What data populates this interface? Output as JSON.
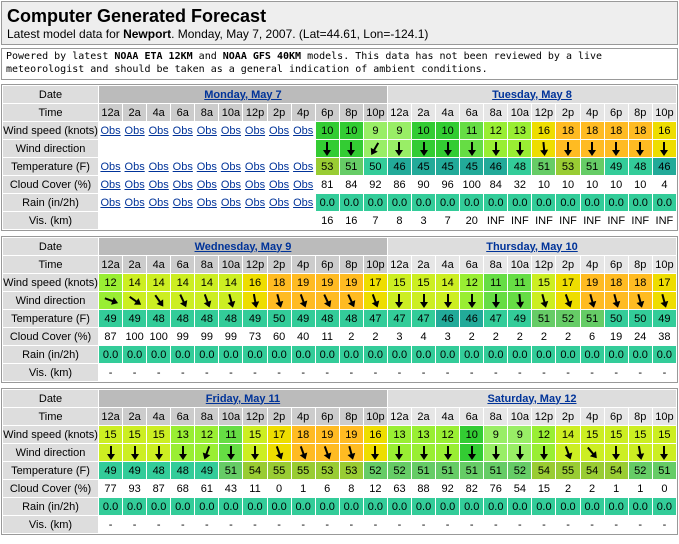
{
  "header": {
    "title": "Computer Generated Forecast",
    "subtitle": [
      {
        "text": "Latest model data for ",
        "bold": false
      },
      {
        "text": "Newport",
        "bold": true
      },
      {
        "text": ". Monday, May 7, 2007. (Lat=44.61, Lon=-124.1)",
        "bold": false
      }
    ]
  },
  "disclaimer": [
    {
      "text": "Powered by latest ",
      "bold": false
    },
    {
      "text": "NOAA ETA 12KM",
      "bold": true
    },
    {
      "text": " and ",
      "bold": false
    },
    {
      "text": "NOAA GFS 40KM",
      "bold": true
    },
    {
      "text": " models. This data has not been reviewed by a live meteorologist and should be taken as a general indication of ambient conditions.",
      "bold": false
    }
  ],
  "row_labels": [
    "Date",
    "Time",
    "Wind speed (knots)",
    "Wind direction",
    "Temperature (F)",
    "Cloud Cover (%)",
    "Rain (in/2h)",
    "Vis. (km)"
  ],
  "blocks": [
    {
      "days": [
        {
          "date": "Monday, May 7",
          "times": [
            "12a",
            "2a",
            "4a",
            "6a",
            "8a",
            "10a",
            "12p",
            "2p",
            "4p",
            "6p",
            "8p",
            "10p"
          ],
          "wind_speed": [
            "Obs",
            "Obs",
            "Obs",
            "Obs",
            "Obs",
            "Obs",
            "Obs",
            "Obs",
            "Obs",
            10,
            10,
            9
          ],
          "wind_direction": [
            null,
            null,
            null,
            null,
            null,
            null,
            null,
            null,
            null,
            0,
            0,
            30
          ],
          "temperature": [
            "Obs",
            "Obs",
            "Obs",
            "Obs",
            "Obs",
            "Obs",
            "Obs",
            "Obs",
            "Obs",
            53,
            51,
            50
          ],
          "cloud_cover": [
            "Obs",
            "Obs",
            "Obs",
            "Obs",
            "Obs",
            "Obs",
            "Obs",
            "Obs",
            "Obs",
            81,
            84,
            92
          ],
          "rain": [
            "Obs",
            "Obs",
            "Obs",
            "Obs",
            "Obs",
            "Obs",
            "Obs",
            "Obs",
            "Obs",
            "0.0",
            "0.0",
            "0.0"
          ],
          "visibility": [
            null,
            null,
            null,
            null,
            null,
            null,
            null,
            null,
            null,
            16,
            16,
            7
          ]
        },
        {
          "date": "Tuesday, May 8",
          "times": [
            "12a",
            "2a",
            "4a",
            "6a",
            "8a",
            "10a",
            "12p",
            "2p",
            "4p",
            "6p",
            "8p",
            "10p"
          ],
          "wind_speed": [
            9,
            10,
            10,
            11,
            12,
            13,
            16,
            18,
            18,
            18,
            18,
            16
          ],
          "wind_direction": [
            0,
            0,
            0,
            0,
            0,
            0,
            355,
            0,
            0,
            0,
            0,
            0
          ],
          "temperature": [
            46,
            45,
            45,
            45,
            46,
            48,
            51,
            53,
            51,
            49,
            48,
            46
          ],
          "cloud_cover": [
            86,
            90,
            96,
            100,
            84,
            32,
            10,
            10,
            10,
            10,
            10,
            4
          ],
          "rain": [
            "0.0",
            "0.0",
            "0.0",
            "0.0",
            "0.0",
            "0.0",
            "0.0",
            "0.0",
            "0.0",
            "0.0",
            "0.0",
            "0.0"
          ],
          "visibility": [
            8,
            3,
            7,
            20,
            "INF",
            "INF",
            "INF",
            "INF",
            "INF",
            "INF",
            "INF",
            "INF"
          ]
        }
      ]
    },
    {
      "days": [
        {
          "date": "Wednesday, May 9",
          "times": [
            "12a",
            "2a",
            "4a",
            "6a",
            "8a",
            "10a",
            "12p",
            "2p",
            "4p",
            "6p",
            "8p",
            "10p"
          ],
          "wind_speed": [
            12,
            14,
            14,
            14,
            14,
            14,
            16,
            18,
            19,
            19,
            19,
            17
          ],
          "wind_direction": [
            290,
            305,
            325,
            335,
            340,
            345,
            350,
            345,
            340,
            335,
            335,
            340
          ],
          "temperature": [
            49,
            49,
            48,
            48,
            48,
            48,
            49,
            50,
            49,
            48,
            48,
            47
          ],
          "cloud_cover": [
            87,
            100,
            100,
            99,
            99,
            99,
            73,
            60,
            40,
            11,
            2,
            2
          ],
          "rain": [
            "0.0",
            "0.0",
            "0.0",
            "0.0",
            "0.0",
            "0.0",
            "0.0",
            "0.0",
            "0.0",
            "0.0",
            "0.0",
            "0.0"
          ],
          "visibility": [
            "-",
            "-",
            "-",
            "-",
            "-",
            "-",
            "-",
            "-",
            "-",
            "-",
            "-",
            "-"
          ]
        },
        {
          "date": "Thursday, May 10",
          "times": [
            "12a",
            "2a",
            "4a",
            "6a",
            "8a",
            "10a",
            "12p",
            "2p",
            "4p",
            "6p",
            "8p",
            "10p"
          ],
          "wind_speed": [
            15,
            15,
            14,
            12,
            11,
            11,
            15,
            17,
            19,
            18,
            18,
            17
          ],
          "wind_direction": [
            0,
            0,
            0,
            0,
            0,
            355,
            345,
            340,
            345,
            345,
            345,
            345
          ],
          "temperature": [
            47,
            47,
            46,
            46,
            47,
            49,
            51,
            52,
            51,
            50,
            50,
            49
          ],
          "cloud_cover": [
            3,
            4,
            3,
            2,
            2,
            2,
            2,
            2,
            6,
            19,
            24,
            38
          ],
          "rain": [
            "0.0",
            "0.0",
            "0.0",
            "0.0",
            "0.0",
            "0.0",
            "0.0",
            "0.0",
            "0.0",
            "0.0",
            "0.0",
            "0.0"
          ],
          "visibility": [
            "-",
            "-",
            "-",
            "-",
            "-",
            "-",
            "-",
            "-",
            "-",
            "-",
            "-",
            "-"
          ]
        }
      ]
    },
    {
      "days": [
        {
          "date": "Friday, May 11",
          "times": [
            "12a",
            "2a",
            "4a",
            "6a",
            "8a",
            "10a",
            "12p",
            "2p",
            "4p",
            "6p",
            "8p",
            "10p"
          ],
          "wind_speed": [
            15,
            15,
            15,
            13,
            12,
            11,
            15,
            17,
            18,
            19,
            19,
            16
          ],
          "wind_direction": [
            0,
            0,
            0,
            0,
            20,
            0,
            0,
            340,
            340,
            340,
            345,
            0
          ],
          "temperature": [
            49,
            49,
            48,
            48,
            49,
            51,
            54,
            55,
            55,
            53,
            53,
            52
          ],
          "cloud_cover": [
            77,
            93,
            87,
            68,
            61,
            43,
            11,
            0,
            1,
            6,
            8,
            12
          ],
          "rain": [
            "0.0",
            "0.0",
            "0.0",
            "0.0",
            "0.0",
            "0.0",
            "0.0",
            "0.0",
            "0.0",
            "0.0",
            "0.0",
            "0.0"
          ],
          "visibility": [
            "-",
            "-",
            "-",
            "-",
            "-",
            "-",
            "-",
            "-",
            "-",
            "-",
            "-",
            "-"
          ]
        },
        {
          "date": "Saturday, May 12",
          "times": [
            "12a",
            "2a",
            "4a",
            "6a",
            "8a",
            "10a",
            "12p",
            "2p",
            "4p",
            "6p",
            "8p",
            "10p"
          ],
          "wind_speed": [
            13,
            13,
            12,
            10,
            9,
            9,
            12,
            14,
            15,
            15,
            15,
            15
          ],
          "wind_direction": [
            0,
            0,
            0,
            0,
            0,
            0,
            0,
            340,
            320,
            0,
            350,
            0
          ],
          "temperature": [
            52,
            51,
            51,
            51,
            51,
            52,
            54,
            55,
            54,
            54,
            52,
            51
          ],
          "cloud_cover": [
            63,
            88,
            92,
            82,
            76,
            54,
            15,
            2,
            2,
            1,
            1,
            0
          ],
          "rain": [
            "0.0",
            "0.0",
            "0.0",
            "0.0",
            "0.0",
            "0.0",
            "0.0",
            "0.0",
            "0.0",
            "0.0",
            "0.0",
            "0.0"
          ],
          "visibility": [
            "-",
            "-",
            "-",
            "-",
            "-",
            "-",
            "-",
            "-",
            "-",
            "-",
            "-",
            "-"
          ]
        }
      ]
    }
  ]
}
